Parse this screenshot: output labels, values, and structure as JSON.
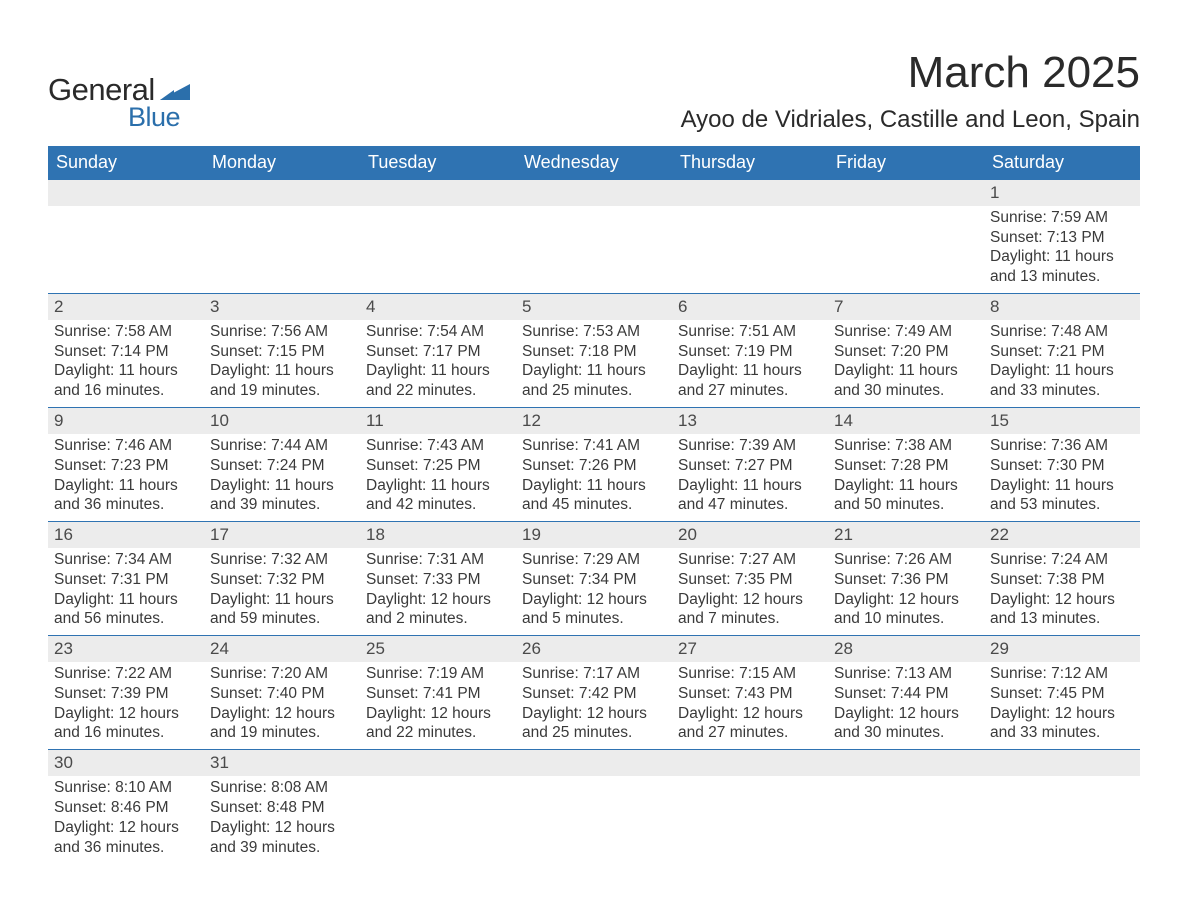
{
  "logo": {
    "text_general": "General",
    "text_blue": "Blue",
    "shape_color": "#2b6fab"
  },
  "title": "March 2025",
  "location": "Ayoo de Vidriales, Castille and Leon, Spain",
  "colors": {
    "header_bg": "#2f73b2",
    "header_text": "#ffffff",
    "daynum_bg": "#ececec",
    "row_border": "#2f73b2",
    "body_text": "#3a3a3a"
  },
  "fonts": {
    "title_pt": 44,
    "location_pt": 24,
    "dayheader_pt": 18,
    "cell_pt": 15.5
  },
  "day_headers": [
    "Sunday",
    "Monday",
    "Tuesday",
    "Wednesday",
    "Thursday",
    "Friday",
    "Saturday"
  ],
  "weeks": [
    [
      null,
      null,
      null,
      null,
      null,
      null,
      {
        "n": "1",
        "sunrise": "7:59 AM",
        "sunset": "7:13 PM",
        "daylight": "11 hours and 13 minutes."
      }
    ],
    [
      {
        "n": "2",
        "sunrise": "7:58 AM",
        "sunset": "7:14 PM",
        "daylight": "11 hours and 16 minutes."
      },
      {
        "n": "3",
        "sunrise": "7:56 AM",
        "sunset": "7:15 PM",
        "daylight": "11 hours and 19 minutes."
      },
      {
        "n": "4",
        "sunrise": "7:54 AM",
        "sunset": "7:17 PM",
        "daylight": "11 hours and 22 minutes."
      },
      {
        "n": "5",
        "sunrise": "7:53 AM",
        "sunset": "7:18 PM",
        "daylight": "11 hours and 25 minutes."
      },
      {
        "n": "6",
        "sunrise": "7:51 AM",
        "sunset": "7:19 PM",
        "daylight": "11 hours and 27 minutes."
      },
      {
        "n": "7",
        "sunrise": "7:49 AM",
        "sunset": "7:20 PM",
        "daylight": "11 hours and 30 minutes."
      },
      {
        "n": "8",
        "sunrise": "7:48 AM",
        "sunset": "7:21 PM",
        "daylight": "11 hours and 33 minutes."
      }
    ],
    [
      {
        "n": "9",
        "sunrise": "7:46 AM",
        "sunset": "7:23 PM",
        "daylight": "11 hours and 36 minutes."
      },
      {
        "n": "10",
        "sunrise": "7:44 AM",
        "sunset": "7:24 PM",
        "daylight": "11 hours and 39 minutes."
      },
      {
        "n": "11",
        "sunrise": "7:43 AM",
        "sunset": "7:25 PM",
        "daylight": "11 hours and 42 minutes."
      },
      {
        "n": "12",
        "sunrise": "7:41 AM",
        "sunset": "7:26 PM",
        "daylight": "11 hours and 45 minutes."
      },
      {
        "n": "13",
        "sunrise": "7:39 AM",
        "sunset": "7:27 PM",
        "daylight": "11 hours and 47 minutes."
      },
      {
        "n": "14",
        "sunrise": "7:38 AM",
        "sunset": "7:28 PM",
        "daylight": "11 hours and 50 minutes."
      },
      {
        "n": "15",
        "sunrise": "7:36 AM",
        "sunset": "7:30 PM",
        "daylight": "11 hours and 53 minutes."
      }
    ],
    [
      {
        "n": "16",
        "sunrise": "7:34 AM",
        "sunset": "7:31 PM",
        "daylight": "11 hours and 56 minutes."
      },
      {
        "n": "17",
        "sunrise": "7:32 AM",
        "sunset": "7:32 PM",
        "daylight": "11 hours and 59 minutes."
      },
      {
        "n": "18",
        "sunrise": "7:31 AM",
        "sunset": "7:33 PM",
        "daylight": "12 hours and 2 minutes."
      },
      {
        "n": "19",
        "sunrise": "7:29 AM",
        "sunset": "7:34 PM",
        "daylight": "12 hours and 5 minutes."
      },
      {
        "n": "20",
        "sunrise": "7:27 AM",
        "sunset": "7:35 PM",
        "daylight": "12 hours and 7 minutes."
      },
      {
        "n": "21",
        "sunrise": "7:26 AM",
        "sunset": "7:36 PM",
        "daylight": "12 hours and 10 minutes."
      },
      {
        "n": "22",
        "sunrise": "7:24 AM",
        "sunset": "7:38 PM",
        "daylight": "12 hours and 13 minutes."
      }
    ],
    [
      {
        "n": "23",
        "sunrise": "7:22 AM",
        "sunset": "7:39 PM",
        "daylight": "12 hours and 16 minutes."
      },
      {
        "n": "24",
        "sunrise": "7:20 AM",
        "sunset": "7:40 PM",
        "daylight": "12 hours and 19 minutes."
      },
      {
        "n": "25",
        "sunrise": "7:19 AM",
        "sunset": "7:41 PM",
        "daylight": "12 hours and 22 minutes."
      },
      {
        "n": "26",
        "sunrise": "7:17 AM",
        "sunset": "7:42 PM",
        "daylight": "12 hours and 25 minutes."
      },
      {
        "n": "27",
        "sunrise": "7:15 AM",
        "sunset": "7:43 PM",
        "daylight": "12 hours and 27 minutes."
      },
      {
        "n": "28",
        "sunrise": "7:13 AM",
        "sunset": "7:44 PM",
        "daylight": "12 hours and 30 minutes."
      },
      {
        "n": "29",
        "sunrise": "7:12 AM",
        "sunset": "7:45 PM",
        "daylight": "12 hours and 33 minutes."
      }
    ],
    [
      {
        "n": "30",
        "sunrise": "8:10 AM",
        "sunset": "8:46 PM",
        "daylight": "12 hours and 36 minutes."
      },
      {
        "n": "31",
        "sunrise": "8:08 AM",
        "sunset": "8:48 PM",
        "daylight": "12 hours and 39 minutes."
      },
      null,
      null,
      null,
      null,
      null
    ]
  ],
  "labels": {
    "sunrise": "Sunrise: ",
    "sunset": "Sunset: ",
    "daylight": "Daylight: "
  }
}
